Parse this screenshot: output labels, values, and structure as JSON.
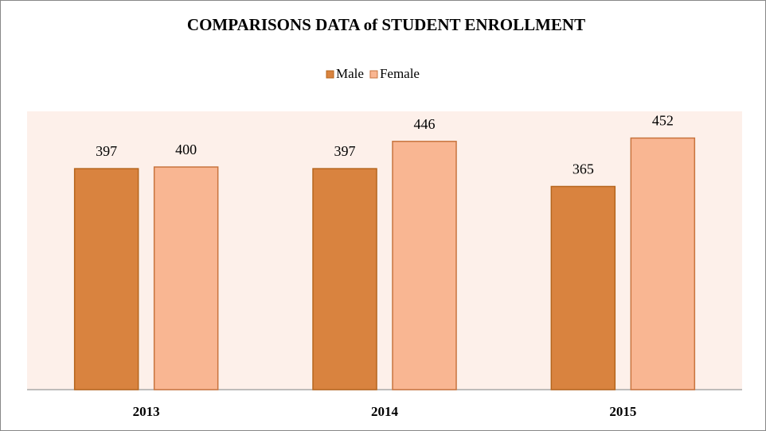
{
  "chart_data": {
    "type": "bar",
    "title": "COMPARISONS DATA of STUDENT ENROLLMENT",
    "categories": [
      "2013",
      "2014",
      "2015"
    ],
    "series": [
      {
        "name": "Male",
        "color": "#d9833f",
        "values": [
          397,
          397,
          365
        ]
      },
      {
        "name": "Female",
        "color": "#f9b692",
        "values": [
          400,
          446,
          452
        ]
      }
    ],
    "ylim": [
      0,
      500
    ],
    "legend": "top"
  }
}
